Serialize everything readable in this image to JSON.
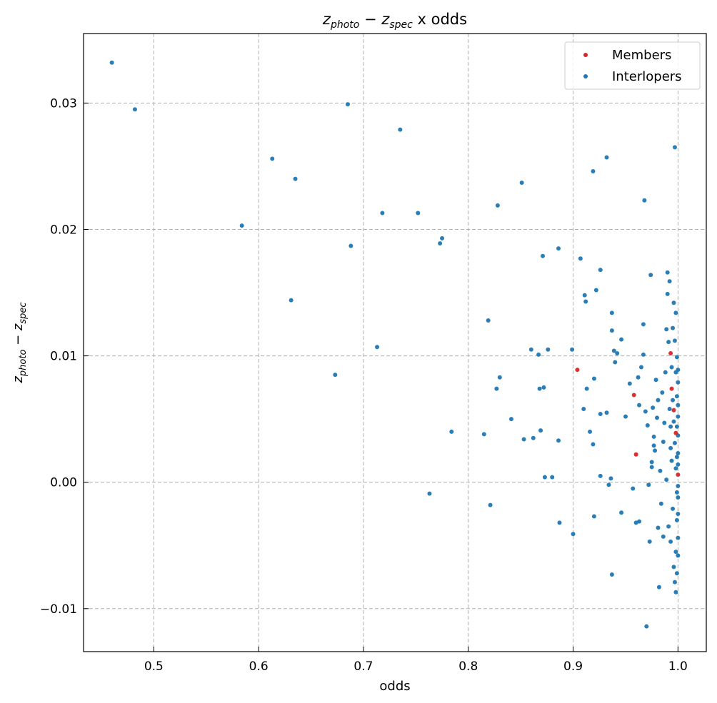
{
  "chart_data": {
    "type": "scatter",
    "title": "z_photo − z_spec x odds",
    "xlabel": "odds",
    "ylabel": "z_photo − z_spec",
    "xlim": [
      0.433,
      1.027
    ],
    "ylim": [
      -0.0134,
      0.0355
    ],
    "xticks": [
      0.5,
      0.6,
      0.7,
      0.8,
      0.9,
      1.0
    ],
    "xtick_labels": [
      "0.5",
      "0.6",
      "0.7",
      "0.8",
      "0.9",
      "1.0"
    ],
    "yticks": [
      -0.01,
      0.0,
      0.01,
      0.02,
      0.03
    ],
    "ytick_labels": [
      "−0.01",
      "0.00",
      "0.01",
      "0.02",
      "0.03"
    ],
    "grid": true,
    "legend_position": "top-right",
    "series": [
      {
        "name": "Members",
        "color": "#d62728",
        "points": [
          [
            0.904,
            0.0089
          ],
          [
            0.958,
            0.0069
          ],
          [
            0.96,
            0.0022
          ],
          [
            0.993,
            0.0102
          ],
          [
            0.994,
            0.0074
          ],
          [
            0.996,
            0.0057
          ],
          [
            0.998,
            0.0039
          ],
          [
            1.0,
            0.0006
          ]
        ]
      },
      {
        "name": "Interlopers",
        "color": "#1f77b4",
        "points": [
          [
            0.46,
            0.0332
          ],
          [
            0.482,
            0.0295
          ],
          [
            0.584,
            0.0203
          ],
          [
            0.613,
            0.0256
          ],
          [
            0.635,
            0.024
          ],
          [
            0.631,
            0.0144
          ],
          [
            0.673,
            0.0085
          ],
          [
            0.685,
            0.0299
          ],
          [
            0.688,
            0.0187
          ],
          [
            0.713,
            0.0107
          ],
          [
            0.718,
            0.0213
          ],
          [
            0.735,
            0.0279
          ],
          [
            0.752,
            0.0213
          ],
          [
            0.763,
            -0.0009
          ],
          [
            0.773,
            0.0189
          ],
          [
            0.775,
            0.0193
          ],
          [
            0.784,
            0.004
          ],
          [
            0.815,
            0.0038
          ],
          [
            0.819,
            0.0128
          ],
          [
            0.821,
            -0.0018
          ],
          [
            0.828,
            0.0219
          ],
          [
            0.827,
            0.0074
          ],
          [
            0.83,
            0.0083
          ],
          [
            0.841,
            0.005
          ],
          [
            0.851,
            0.0237
          ],
          [
            0.853,
            0.0034
          ],
          [
            0.86,
            0.0105
          ],
          [
            0.862,
            0.0035
          ],
          [
            0.867,
            0.0101
          ],
          [
            0.868,
            0.0074
          ],
          [
            0.869,
            0.0041
          ],
          [
            0.871,
            0.0179
          ],
          [
            0.872,
            0.0075
          ],
          [
            0.873,
            0.0004
          ],
          [
            0.876,
            0.0105
          ],
          [
            0.88,
            0.0004
          ],
          [
            0.886,
            0.0185
          ],
          [
            0.886,
            0.0033
          ],
          [
            0.887,
            -0.0032
          ],
          [
            0.899,
            0.0105
          ],
          [
            0.9,
            -0.0041
          ],
          [
            0.907,
            0.0177
          ],
          [
            0.911,
            0.0148
          ],
          [
            0.912,
            0.0143
          ],
          [
            0.91,
            0.0058
          ],
          [
            0.913,
            0.0074
          ],
          [
            0.916,
            0.004
          ],
          [
            0.919,
            0.0246
          ],
          [
            0.92,
            0.0082
          ],
          [
            0.92,
            -0.0027
          ],
          [
            0.919,
            0.003
          ],
          [
            0.922,
            0.0152
          ],
          [
            0.926,
            0.0168
          ],
          [
            0.926,
            0.0054
          ],
          [
            0.926,
            0.0005
          ],
          [
            0.932,
            0.0257
          ],
          [
            0.932,
            0.0055
          ],
          [
            0.934,
            -0.0002
          ],
          [
            0.936,
            0.0003
          ],
          [
            0.937,
            0.0134
          ],
          [
            0.937,
            0.012
          ],
          [
            0.937,
            -0.0073
          ],
          [
            0.939,
            0.0104
          ],
          [
            0.94,
            0.0095
          ],
          [
            0.942,
            0.0102
          ],
          [
            0.946,
            0.0113
          ],
          [
            0.946,
            -0.0024
          ],
          [
            0.95,
            0.0052
          ],
          [
            0.954,
            0.0078
          ],
          [
            0.957,
            -0.0005
          ],
          [
            0.96,
            -0.0032
          ],
          [
            0.962,
            0.0083
          ],
          [
            0.963,
            0.0061
          ],
          [
            0.963,
            -0.0031
          ],
          [
            0.965,
            0.0091
          ],
          [
            0.967,
            0.0101
          ],
          [
            0.967,
            0.0125
          ],
          [
            0.968,
            0.0223
          ],
          [
            0.969,
            0.0056
          ],
          [
            0.97,
            -0.0114
          ],
          [
            0.971,
            0.0045
          ],
          [
            0.972,
            -0.0002
          ],
          [
            0.973,
            -0.0047
          ],
          [
            0.974,
            0.0164
          ],
          [
            0.975,
            0.0012
          ],
          [
            0.975,
            0.0016
          ],
          [
            0.976,
            0.0059
          ],
          [
            0.977,
            0.0036
          ],
          [
            0.977,
            0.0029
          ],
          [
            0.978,
            0.0025
          ],
          [
            0.979,
            0.0081
          ],
          [
            0.98,
            0.0051
          ],
          [
            0.981,
            0.0065
          ],
          [
            0.981,
            -0.0036
          ],
          [
            0.982,
            -0.0083
          ],
          [
            0.983,
            0.0009
          ],
          [
            0.984,
            -0.0017
          ],
          [
            0.985,
            0.0071
          ],
          [
            0.986,
            0.0032
          ],
          [
            0.986,
            -0.0043
          ],
          [
            0.987,
            0.0047
          ],
          [
            0.988,
            0.0087
          ],
          [
            0.989,
            0.0121
          ],
          [
            0.989,
            0.0002
          ],
          [
            0.99,
            0.0166
          ],
          [
            0.99,
            0.0149
          ],
          [
            0.991,
            0.0111
          ],
          [
            0.991,
            -0.0035
          ],
          [
            0.992,
            0.0159
          ],
          [
            0.992,
            0.0058
          ],
          [
            0.993,
            0.0044
          ],
          [
            0.993,
            0.0027
          ],
          [
            0.993,
            -0.0047
          ],
          [
            0.994,
            0.0091
          ],
          [
            0.994,
            0.0017
          ],
          [
            0.995,
            0.0122
          ],
          [
            0.995,
            0.0065
          ],
          [
            0.995,
            -0.0021
          ],
          [
            0.996,
            0.0142
          ],
          [
            0.996,
            0.0048
          ],
          [
            0.996,
            -0.0067
          ],
          [
            0.997,
            0.0112
          ],
          [
            0.997,
            0.0031
          ],
          [
            0.997,
            -0.0079
          ],
          [
            0.997,
            0.0265
          ],
          [
            0.998,
            0.0134
          ],
          [
            0.998,
            0.0087
          ],
          [
            0.998,
            0.0011
          ],
          [
            0.998,
            -0.0055
          ],
          [
            0.998,
            -0.0087
          ],
          [
            0.999,
            0.0099
          ],
          [
            0.999,
            0.0068
          ],
          [
            0.999,
            0.0044
          ],
          [
            0.999,
            0.002
          ],
          [
            0.999,
            -0.0008
          ],
          [
            0.999,
            -0.003
          ],
          [
            0.999,
            -0.0072
          ],
          [
            1.0,
            0.0089
          ],
          [
            1.0,
            0.0079
          ],
          [
            1.0,
            0.0061
          ],
          [
            1.0,
            0.0052
          ],
          [
            1.0,
            0.0037
          ],
          [
            1.0,
            0.0023
          ],
          [
            1.0,
            0.0014
          ],
          [
            1.0,
            -0.0003
          ],
          [
            1.0,
            -0.0012
          ],
          [
            1.0,
            -0.0025
          ],
          [
            1.0,
            -0.0044
          ],
          [
            1.0,
            -0.0058
          ]
        ]
      }
    ]
  }
}
